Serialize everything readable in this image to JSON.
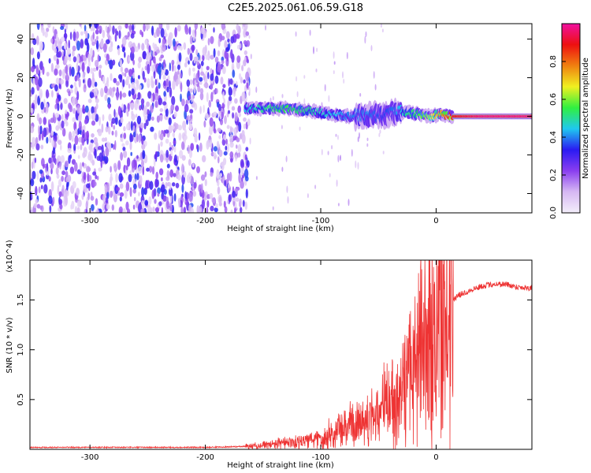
{
  "title": "C2E5.2025.061.06.59.G18",
  "chart_data": [
    {
      "type": "heatmap",
      "title": "C2E5.2025.061.06.59.G18",
      "xlabel": "Height of straight line (km)",
      "ylabel": "Frequency (Hz)",
      "xlim": [
        -352,
        83
      ],
      "ylim": [
        -50,
        48
      ],
      "x_ticks": [
        -300,
        -200,
        -100,
        0
      ],
      "x_tick_labels": [
        "-300",
        "-200",
        "-100",
        "0"
      ],
      "y_ticks": [
        -40,
        -20,
        0,
        20,
        40
      ],
      "y_tick_labels": [
        "-40",
        "-20",
        "0",
        "20",
        "40"
      ],
      "grid": false,
      "colorbar": {
        "label": "Normalized spectral amplitude",
        "range": [
          0,
          1
        ],
        "ticks": [
          0.0,
          0.2,
          0.4,
          0.6,
          0.8
        ],
        "tick_labels": [
          "0.0",
          "0.2",
          "0.4",
          "0.6",
          "0.8"
        ],
        "colors": [
          "#f3eefa",
          "#d6b8f3",
          "#8a3ef0",
          "#2a1af2",
          "#1fc8f0",
          "#30f040",
          "#f0f020",
          "#f08010",
          "#ee1010",
          "#f010a0"
        ]
      },
      "description": "Broadband noise (amplitude ~0.1-0.3) at heights below -160 km; a narrow signal ridge near 0 Hz from about -165 km to 83 km, amplitude rising to ~1.0 above 15 km",
      "ridge": {
        "x": [
          -165,
          -150,
          -130,
          -110,
          -90,
          -75,
          -60,
          -45,
          -35,
          -25,
          -15,
          -5,
          5,
          15,
          40,
          83
        ],
        "frequency": [
          4,
          4,
          4,
          3,
          1,
          0,
          0,
          1,
          2,
          2,
          1,
          0,
          1,
          0,
          0,
          0
        ],
        "amplitude": [
          0.45,
          0.5,
          0.55,
          0.5,
          0.45,
          0.4,
          0.4,
          0.35,
          0.4,
          0.5,
          0.55,
          0.65,
          0.75,
          0.9,
          0.98,
          0.98
        ]
      }
    },
    {
      "type": "line",
      "xlabel": "Height of straight line (km)",
      "ylabel": "SNR (10 * v/v)",
      "y_scale_label": "(x10^4)",
      "xlim": [
        -352,
        83
      ],
      "ylim": [
        0,
        1.9
      ],
      "x_ticks": [
        -300,
        -200,
        -100,
        0
      ],
      "x_tick_labels": [
        "-300",
        "-200",
        "-100",
        "0"
      ],
      "y_ticks": [
        0.5,
        1.0,
        1.5
      ],
      "y_tick_labels": [
        "0.5",
        "1.0",
        "1.5"
      ],
      "grid": false,
      "series": [
        {
          "color": "#ee3333",
          "x": [
            -352,
            -300,
            -250,
            -200,
            -160,
            -140,
            -120,
            -100,
            -80,
            -60,
            -40,
            -30,
            -20,
            -10,
            0,
            10,
            20,
            30,
            40,
            50,
            60,
            70,
            83
          ],
          "values": [
            0.02,
            0.02,
            0.02,
            0.02,
            0.03,
            0.05,
            0.08,
            0.12,
            0.2,
            0.3,
            0.45,
            0.6,
            0.85,
            1.1,
            1.2,
            1.45,
            1.55,
            1.6,
            1.64,
            1.66,
            1.66,
            1.63,
            1.62
          ]
        }
      ]
    }
  ]
}
